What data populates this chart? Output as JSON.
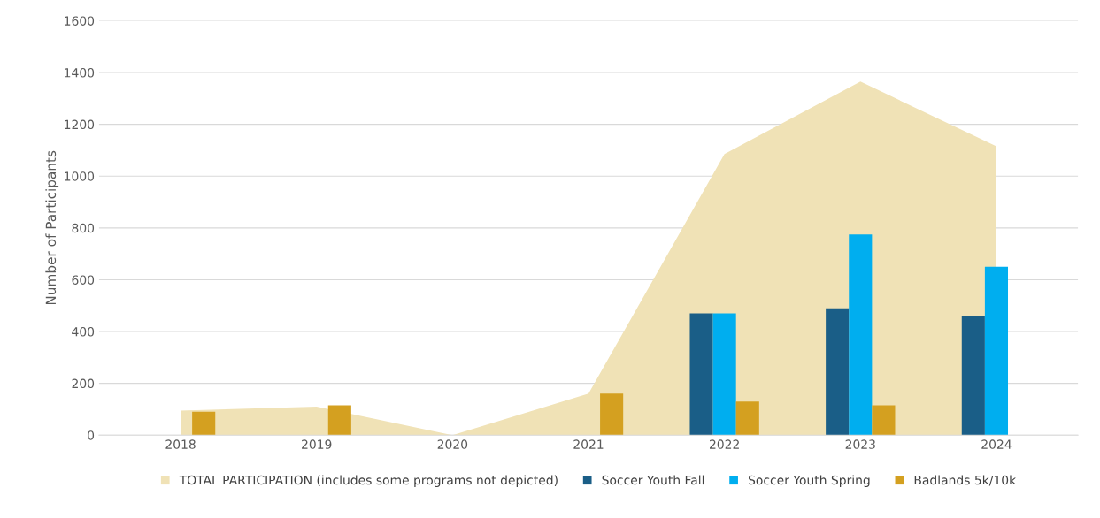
{
  "chart_data": {
    "type": "bar",
    "ylabel": "Number of Participants",
    "categories": [
      "2018",
      "2019",
      "2020",
      "2021",
      "2022",
      "2023",
      "2024"
    ],
    "series": [
      {
        "name": "TOTAL PARTICIPATION (includes some programs not depicted)",
        "type": "area",
        "color": "#f0e2b6",
        "values": [
          95,
          110,
          0,
          160,
          1085,
          1365,
          1115
        ]
      },
      {
        "name": "Soccer Youth Fall",
        "color": "#1a5e87",
        "values": [
          null,
          null,
          null,
          null,
          470,
          490,
          460
        ]
      },
      {
        "name": "Soccer Youth Spring",
        "color": "#00aeef",
        "values": [
          null,
          null,
          null,
          null,
          470,
          775,
          650
        ]
      },
      {
        "name": "Badlands 5k/10k",
        "color": "#d4a020",
        "values": [
          90,
          115,
          null,
          160,
          130,
          115,
          null
        ]
      }
    ],
    "ylim": [
      0,
      1600
    ],
    "yticks": [
      0,
      200,
      400,
      600,
      800,
      1000,
      1200,
      1400,
      1600
    ],
    "grid": "y",
    "legend": "bottom"
  }
}
